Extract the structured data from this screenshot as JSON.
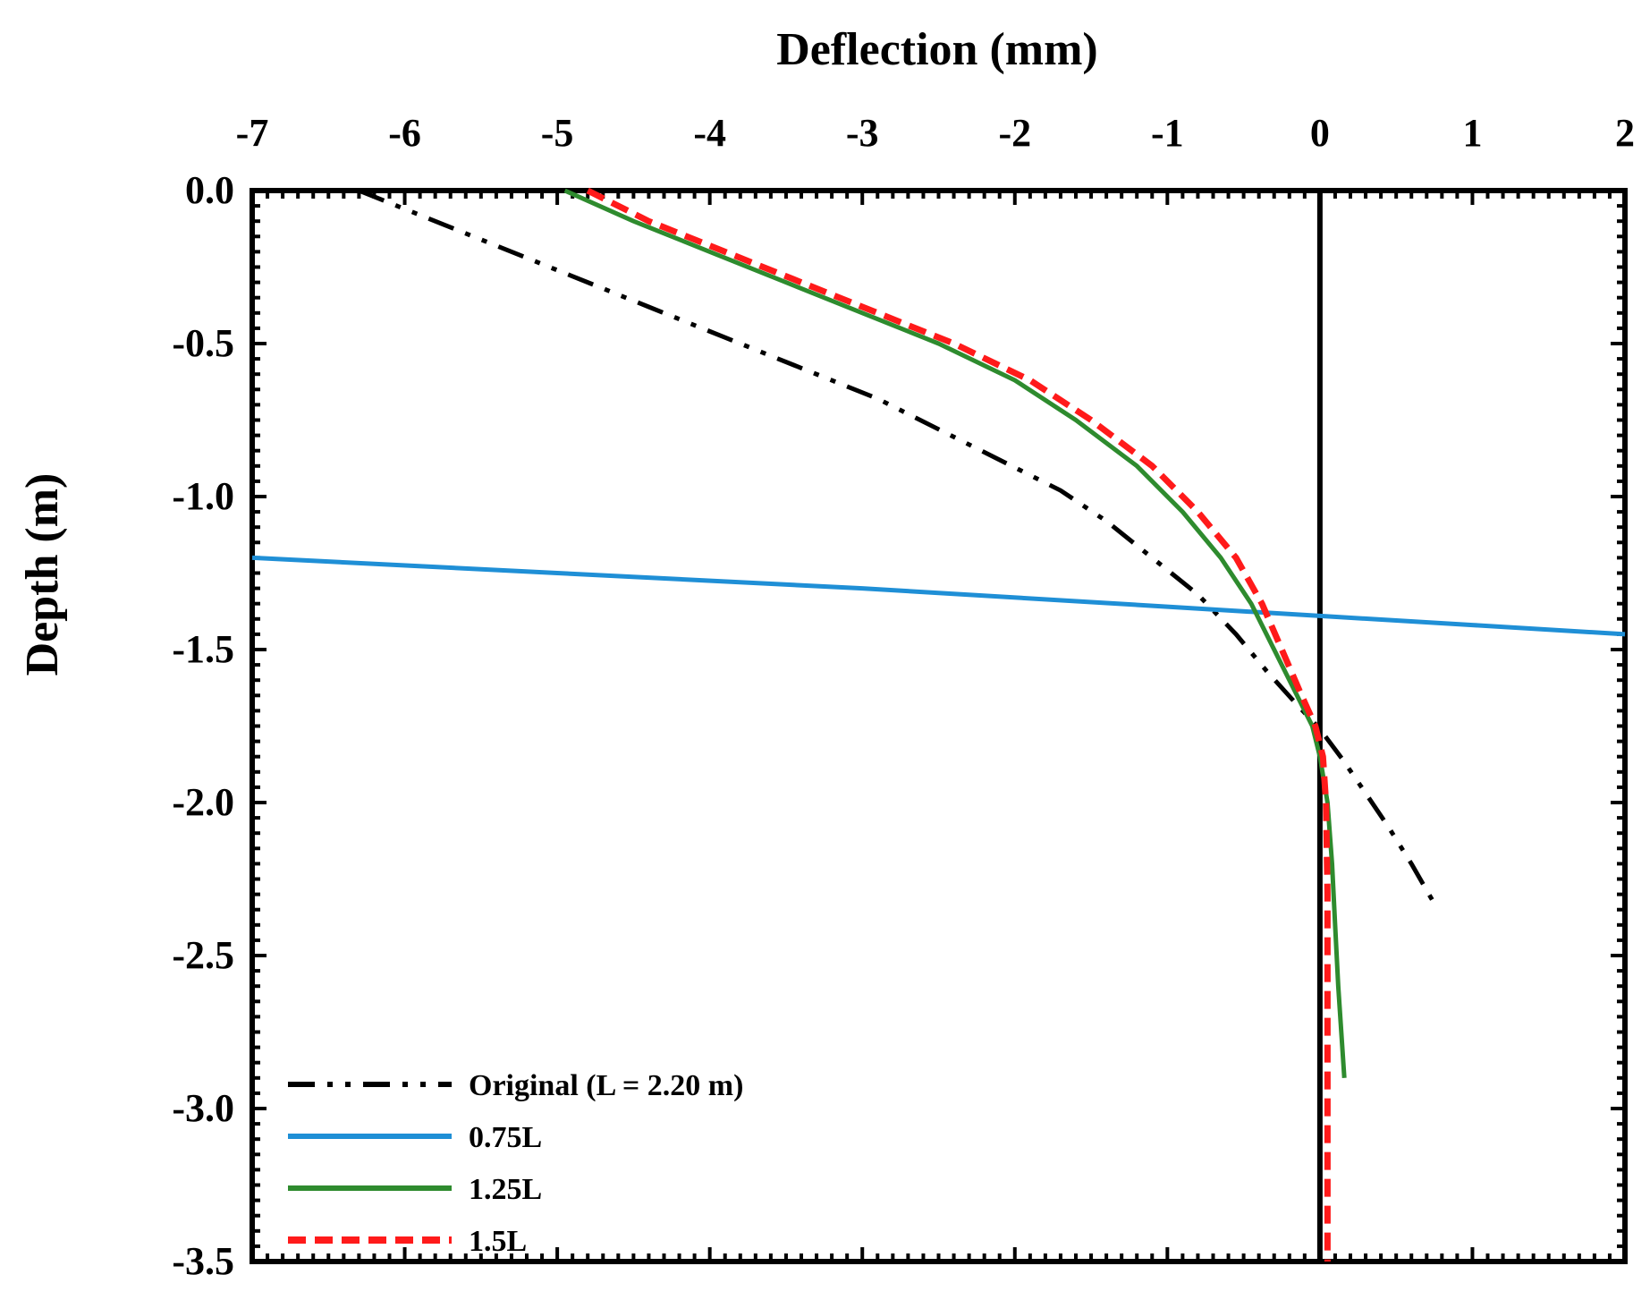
{
  "chart_data": {
    "type": "line",
    "title": "",
    "xlabel": "Deflection (mm)",
    "ylabel": "Depth (m)",
    "xlim": [
      -7,
      2
    ],
    "ylim": [
      -3.5,
      0.0
    ],
    "x_ticks": [
      "-7",
      "-6",
      "-5",
      "-4",
      "-3",
      "-2",
      "-1",
      "0",
      "1",
      "2"
    ],
    "y_ticks": [
      "0.0",
      "-0.5",
      "-1.0",
      "-1.5",
      "-2.0",
      "-2.5",
      "-3.0",
      "-3.5"
    ],
    "x_tick_values": [
      -7,
      -6,
      -5,
      -4,
      -3,
      -2,
      -1,
      0,
      1,
      2
    ],
    "y_tick_values": [
      0.0,
      -0.5,
      -1.0,
      -1.5,
      -2.0,
      -2.5,
      -3.0,
      -3.5
    ],
    "x_axis_position": "top",
    "grid": false,
    "legend_position": "bottom-left",
    "reference_line_x": 0,
    "series": [
      {
        "name": "Original (L = 2.20 m)",
        "color": "#000000",
        "style": "dash-dot-dot",
        "x": [
          -6.3,
          -5.9,
          -5.4,
          -4.9,
          -4.4,
          -3.9,
          -3.4,
          -2.9,
          -2.5,
          -2.1,
          -1.7,
          -1.4,
          -1.1,
          -0.8,
          -0.55,
          -0.35,
          -0.15,
          0.0,
          0.15,
          0.3,
          0.45,
          0.6,
          0.75
        ],
        "y": [
          0.0,
          -0.08,
          -0.18,
          -0.28,
          -0.38,
          -0.48,
          -0.58,
          -0.68,
          -0.78,
          -0.88,
          -0.98,
          -1.08,
          -1.2,
          -1.32,
          -1.45,
          -1.57,
          -1.68,
          -1.76,
          -1.86,
          -1.97,
          -2.08,
          -2.2,
          -2.33
        ]
      },
      {
        "name": "0.75L",
        "color": "#1f8fd6",
        "style": "solid",
        "x": [
          -7.0,
          -5.0,
          -3.0,
          -1.0,
          0.0,
          1.0,
          2.0
        ],
        "y": [
          -1.2,
          -1.25,
          -1.3,
          -1.36,
          -1.39,
          -1.42,
          -1.45
        ]
      },
      {
        "name": "1.25L",
        "color": "#2e8b2e",
        "style": "solid",
        "x": [
          -4.95,
          -4.5,
          -4.0,
          -3.5,
          -3.0,
          -2.5,
          -2.0,
          -1.6,
          -1.2,
          -0.9,
          -0.65,
          -0.45,
          -0.3,
          -0.15,
          -0.05,
          0.0,
          0.05,
          0.08,
          0.1,
          0.12,
          0.14,
          0.16
        ],
        "y": [
          0.0,
          -0.1,
          -0.2,
          -0.3,
          -0.4,
          -0.5,
          -0.62,
          -0.75,
          -0.9,
          -1.05,
          -1.2,
          -1.35,
          -1.5,
          -1.65,
          -1.75,
          -1.85,
          -2.0,
          -2.2,
          -2.4,
          -2.6,
          -2.75,
          -2.9
        ]
      },
      {
        "name": "1.5L",
        "color": "#ff1a1a",
        "style": "dashed",
        "x": [
          -4.8,
          -4.4,
          -3.9,
          -3.4,
          -2.9,
          -2.4,
          -1.9,
          -1.5,
          -1.1,
          -0.8,
          -0.55,
          -0.38,
          -0.25,
          -0.12,
          -0.03,
          0.02,
          0.04,
          0.05,
          0.05,
          0.05,
          0.05,
          0.05
        ],
        "y": [
          0.0,
          -0.1,
          -0.2,
          -0.3,
          -0.4,
          -0.5,
          -0.62,
          -0.75,
          -0.9,
          -1.05,
          -1.2,
          -1.35,
          -1.5,
          -1.65,
          -1.75,
          -1.85,
          -2.0,
          -2.3,
          -2.6,
          -2.9,
          -3.2,
          -3.5
        ]
      }
    ]
  }
}
